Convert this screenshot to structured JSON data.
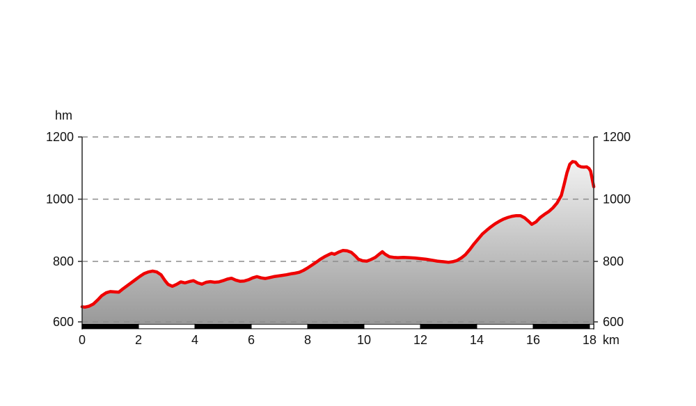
{
  "chart_data": {
    "type": "area",
    "title": "",
    "y_axis_label": "hm",
    "x_axis_label": "km",
    "y_ticks": [
      600,
      800,
      1000,
      1200
    ],
    "x_ticks": [
      0,
      2,
      4,
      6,
      8,
      10,
      12,
      14,
      16,
      18
    ],
    "ylim": [
      600,
      1200
    ],
    "xlim": [
      0,
      18.15
    ],
    "grid": "dashed horizontal gridlines at every y tick, both left and right y axes labeled",
    "legend_position": "none",
    "line_color": "#ee0000",
    "axis_color": "#333333",
    "grid_color": "#8c8c8c",
    "text_color": "#111111",
    "fill_gradient_top": "#ffffff",
    "fill_gradient_bottom": "#999999",
    "scale_bar": {
      "description": "alternating black/white distance bar along x axis",
      "segment_km": 2,
      "start_color": "#000000",
      "alt_color": "#ffffff",
      "border_color": "#000000"
    },
    "profile_km_hm": [
      [
        0.0,
        654
      ],
      [
        0.1,
        653
      ],
      [
        0.25,
        656
      ],
      [
        0.4,
        663
      ],
      [
        0.55,
        676
      ],
      [
        0.7,
        690
      ],
      [
        0.85,
        699
      ],
      [
        1.0,
        703
      ],
      [
        1.15,
        702
      ],
      [
        1.3,
        701
      ],
      [
        1.45,
        712
      ],
      [
        1.6,
        722
      ],
      [
        1.75,
        732
      ],
      [
        1.9,
        742
      ],
      [
        2.05,
        752
      ],
      [
        2.2,
        761
      ],
      [
        2.35,
        766
      ],
      [
        2.5,
        769
      ],
      [
        2.65,
        766
      ],
      [
        2.8,
        757
      ],
      [
        2.95,
        737
      ],
      [
        3.05,
        726
      ],
      [
        3.2,
        720
      ],
      [
        3.35,
        726
      ],
      [
        3.5,
        734
      ],
      [
        3.65,
        731
      ],
      [
        3.8,
        735
      ],
      [
        3.95,
        738
      ],
      [
        4.1,
        731
      ],
      [
        4.25,
        727
      ],
      [
        4.4,
        733
      ],
      [
        4.55,
        735
      ],
      [
        4.7,
        733
      ],
      [
        4.85,
        734
      ],
      [
        5.0,
        738
      ],
      [
        5.15,
        743
      ],
      [
        5.3,
        746
      ],
      [
        5.45,
        740
      ],
      [
        5.6,
        736
      ],
      [
        5.75,
        737
      ],
      [
        5.9,
        741
      ],
      [
        6.05,
        747
      ],
      [
        6.2,
        751
      ],
      [
        6.35,
        747
      ],
      [
        6.5,
        745
      ],
      [
        6.65,
        748
      ],
      [
        6.8,
        751
      ],
      [
        6.95,
        753
      ],
      [
        7.1,
        755
      ],
      [
        7.25,
        757
      ],
      [
        7.4,
        760
      ],
      [
        7.55,
        762
      ],
      [
        7.7,
        765
      ],
      [
        7.85,
        771
      ],
      [
        8.0,
        779
      ],
      [
        8.15,
        788
      ],
      [
        8.3,
        797
      ],
      [
        8.45,
        807
      ],
      [
        8.6,
        815
      ],
      [
        8.75,
        822
      ],
      [
        8.85,
        826
      ],
      [
        8.95,
        823
      ],
      [
        9.1,
        830
      ],
      [
        9.25,
        835
      ],
      [
        9.4,
        834
      ],
      [
        9.55,
        829
      ],
      [
        9.7,
        817
      ],
      [
        9.8,
        807
      ],
      [
        9.95,
        802
      ],
      [
        10.1,
        801
      ],
      [
        10.25,
        806
      ],
      [
        10.4,
        813
      ],
      [
        10.55,
        824
      ],
      [
        10.65,
        831
      ],
      [
        10.75,
        823
      ],
      [
        10.9,
        815
      ],
      [
        11.05,
        813
      ],
      [
        11.2,
        812
      ],
      [
        11.4,
        813
      ],
      [
        11.6,
        812
      ],
      [
        11.8,
        811
      ],
      [
        12.0,
        809
      ],
      [
        12.2,
        807
      ],
      [
        12.4,
        804
      ],
      [
        12.6,
        801
      ],
      [
        12.8,
        799
      ],
      [
        13.0,
        797
      ],
      [
        13.15,
        799
      ],
      [
        13.3,
        803
      ],
      [
        13.45,
        811
      ],
      [
        13.6,
        822
      ],
      [
        13.75,
        838
      ],
      [
        13.9,
        856
      ],
      [
        14.05,
        872
      ],
      [
        14.2,
        888
      ],
      [
        14.35,
        900
      ],
      [
        14.5,
        911
      ],
      [
        14.65,
        921
      ],
      [
        14.8,
        929
      ],
      [
        14.95,
        936
      ],
      [
        15.1,
        941
      ],
      [
        15.25,
        945
      ],
      [
        15.4,
        947
      ],
      [
        15.55,
        947
      ],
      [
        15.7,
        940
      ],
      [
        15.85,
        928
      ],
      [
        15.95,
        919
      ],
      [
        16.1,
        927
      ],
      [
        16.25,
        941
      ],
      [
        16.4,
        951
      ],
      [
        16.55,
        960
      ],
      [
        16.7,
        972
      ],
      [
        16.85,
        988
      ],
      [
        17.0,
        1012
      ],
      [
        17.1,
        1048
      ],
      [
        17.2,
        1085
      ],
      [
        17.3,
        1112
      ],
      [
        17.4,
        1121
      ],
      [
        17.5,
        1119
      ],
      [
        17.6,
        1108
      ],
      [
        17.7,
        1104
      ],
      [
        17.8,
        1103
      ],
      [
        17.9,
        1104
      ],
      [
        17.98,
        1099
      ],
      [
        18.04,
        1090
      ],
      [
        18.1,
        1062
      ],
      [
        18.15,
        1040
      ]
    ]
  }
}
